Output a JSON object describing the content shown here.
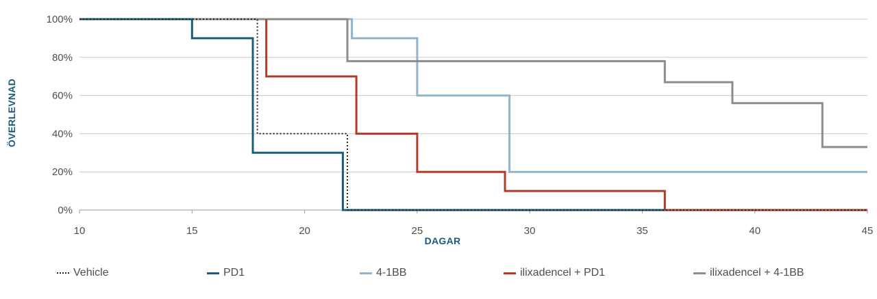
{
  "chart_data": {
    "type": "line",
    "step": true,
    "xlabel": "DAGAR",
    "ylabel": "ÖVERLEVNAD",
    "xlim": [
      10,
      45
    ],
    "ylim": [
      0,
      100
    ],
    "x_ticks": [
      "10",
      "15",
      "20",
      "25",
      "30",
      "35",
      "40",
      "45"
    ],
    "y_ticks": [
      "0%",
      "20%",
      "40%",
      "60%",
      "80%",
      "100%"
    ],
    "grid": "horizontal",
    "legend_position": "bottom",
    "axis_title_color": "#1a5b7a",
    "series": [
      {
        "name": "Vehicle",
        "color": "#222222",
        "style": "dotted",
        "x": [
          10,
          17.9,
          17.9,
          21.9,
          21.9,
          45
        ],
        "y": [
          100,
          100,
          40,
          40,
          0,
          0
        ]
      },
      {
        "name": "PD1",
        "color": "#1a5b7a",
        "style": "solid",
        "x": [
          10,
          15,
          15,
          17.7,
          17.7,
          21.7,
          21.7,
          36
        ],
        "y": [
          100,
          100,
          90,
          90,
          30,
          30,
          0,
          0
        ]
      },
      {
        "name": "4-1BB",
        "color": "#8fb4cc",
        "style": "solid",
        "x": [
          10,
          22.1,
          22.1,
          25,
          25,
          29.1,
          29.1,
          45
        ],
        "y": [
          100,
          100,
          90,
          90,
          60,
          60,
          20,
          20
        ]
      },
      {
        "name": "ilixadencel + PD1",
        "color": "#b23a26",
        "style": "solid",
        "x": [
          18.3,
          18.3,
          22.3,
          22.3,
          25,
          25,
          28.9,
          28.9,
          36,
          36,
          45
        ],
        "y": [
          100,
          70,
          70,
          40,
          40,
          20,
          20,
          10,
          10,
          0,
          0
        ]
      },
      {
        "name": "ilixadencel + 4-1BB",
        "color": "#8c8c8c",
        "style": "solid",
        "x": [
          10,
          21.9,
          21.9,
          36,
          36,
          39,
          39,
          43,
          43,
          45
        ],
        "y": [
          100,
          100,
          78,
          78,
          67,
          67,
          56,
          56,
          33,
          33
        ]
      }
    ]
  }
}
